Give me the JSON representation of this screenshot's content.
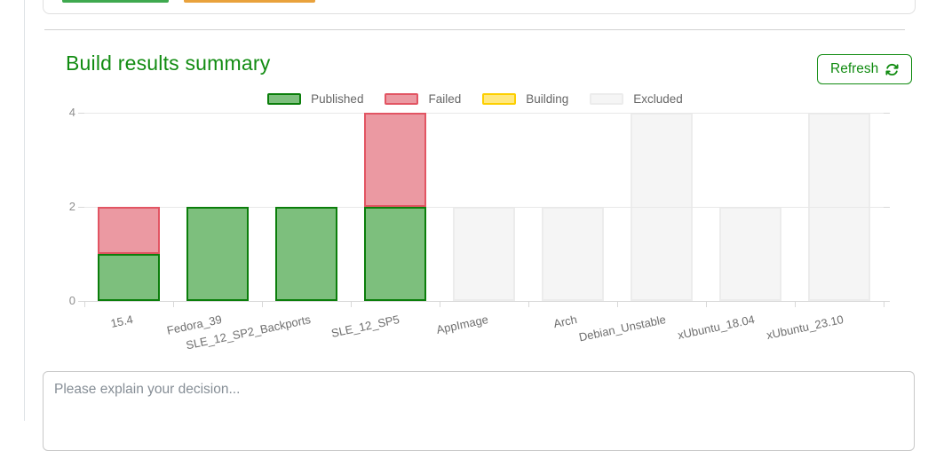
{
  "colors": {
    "accent_green": "#128c12",
    "partial_button_green": "#3fa94f",
    "partial_button_orange": "#e9a23c"
  },
  "header": {
    "title": "Build results summary",
    "refresh_label": "Refresh"
  },
  "comment_box": {
    "placeholder": "Please explain your decision..."
  },
  "chart_data": {
    "type": "bar",
    "stacked": true,
    "title": "",
    "xlabel": "",
    "ylabel": "",
    "ylim": [
      0,
      4
    ],
    "yticks": [
      0,
      2,
      4
    ],
    "grid": true,
    "legend_position": "top",
    "categories": [
      "15.4",
      "Fedora_39",
      "SLE_12_SP2_Backports",
      "SLE_12_SP5",
      "AppImage",
      "Arch",
      "Debian_Unstable",
      "xUbuntu_18.04",
      "xUbuntu_23.10"
    ],
    "series": [
      {
        "name": "Published",
        "fill": "#7dbf7d",
        "border": "#0b7e0b",
        "values": [
          1,
          2,
          2,
          2,
          0,
          0,
          0,
          0,
          0
        ]
      },
      {
        "name": "Failed",
        "fill": "#eb99a2",
        "border": "#e25563",
        "values": [
          1,
          0,
          0,
          2,
          0,
          0,
          0,
          0,
          0
        ]
      },
      {
        "name": "Building",
        "fill": "#ffe87f",
        "border": "#fdcf00",
        "values": [
          0,
          0,
          0,
          0,
          0,
          0,
          0,
          0,
          0
        ]
      },
      {
        "name": "Excluded",
        "fill": "#f5f5f5",
        "border": "#ececec",
        "values": [
          0,
          0,
          0,
          0,
          2,
          2,
          4,
          2,
          4
        ]
      }
    ]
  }
}
